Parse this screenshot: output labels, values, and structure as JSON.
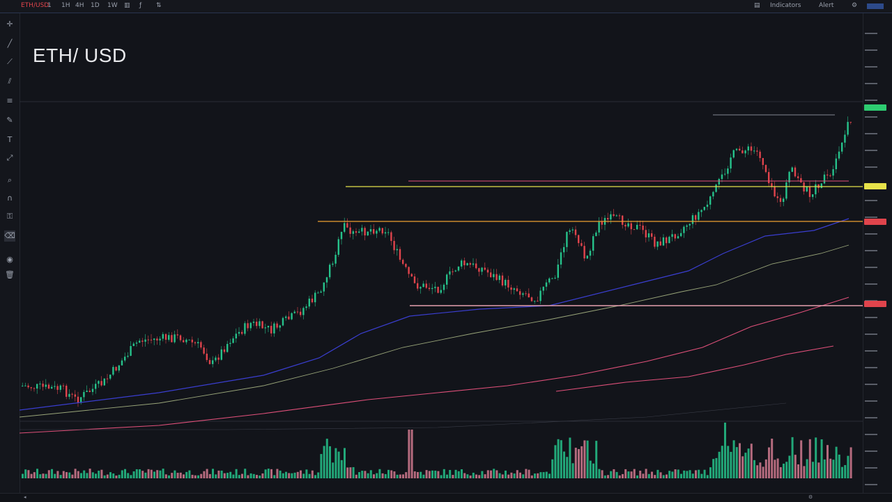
{
  "symbol": {
    "title": "ETH/ USD",
    "code": "ETH/USD"
  },
  "topbar": {
    "intervals": [
      "1",
      "1H",
      "4H",
      "1D",
      "1W"
    ],
    "right_items": [
      "Indicators",
      "Alert"
    ]
  },
  "colors": {
    "up": "#26c28b",
    "down": "#e0444c",
    "ma_fast": "#3a3ed0",
    "ma_mid": "#9aa67a",
    "ma_slow": "#e0507a",
    "level_yellow": "#e6e24a",
    "level_orange": "#f0a030",
    "level_red": "#e0507a",
    "level_pink": "#e6a0b0"
  },
  "price_axis": {
    "tags": [
      {
        "label": "",
        "color": "#2ecc71"
      },
      {
        "label": "",
        "color": "#e6e24a"
      },
      {
        "label": "",
        "color": "#e0444c"
      },
      {
        "label": "",
        "color": "#e0444c"
      }
    ]
  },
  "icons": [
    "crosshair-icon",
    "trend-line-icon",
    "ray-icon",
    "channel-icon",
    "fib-icon",
    "brush-icon",
    "text-icon",
    "measure-icon",
    "zoom-icon",
    "magnet-icon",
    "lock-icon"
  ]
}
